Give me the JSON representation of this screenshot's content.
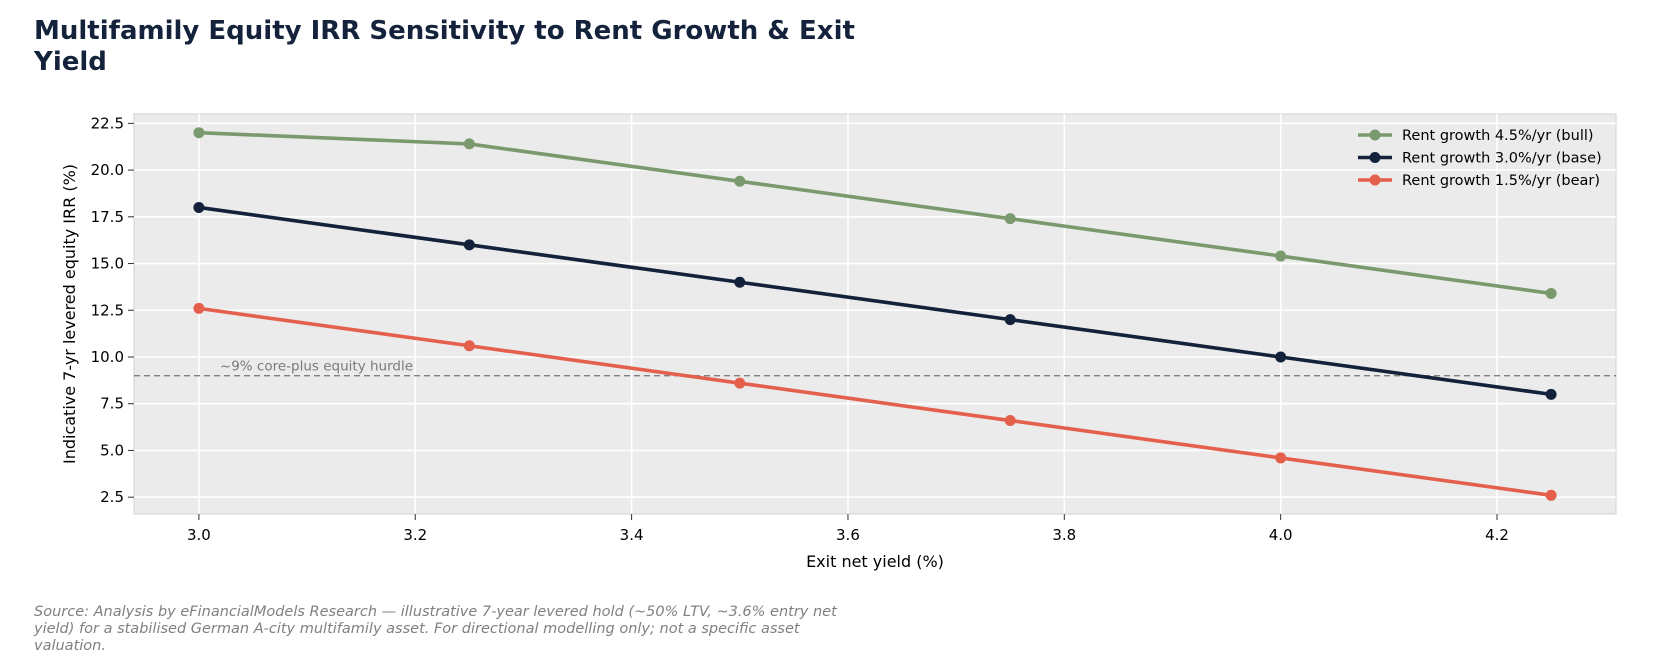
{
  "chart_data": {
    "type": "line",
    "title": "Multifamily Equity IRR Sensitivity to Rent Growth & Exit Yield",
    "xlabel": "Exit net yield (%)",
    "ylabel": "Indicative 7-yr levered equity IRR (%)",
    "x": [
      3.0,
      3.25,
      3.5,
      3.75,
      4.0,
      4.25
    ],
    "xlim": [
      2.94,
      4.31
    ],
    "ylim": [
      1.6,
      23.0
    ],
    "xticks": [
      3.0,
      3.2,
      3.4,
      3.6,
      3.8,
      4.0,
      4.2
    ],
    "xtick_labels": [
      "3.0",
      "3.2",
      "3.4",
      "3.6",
      "3.8",
      "4.0",
      "4.2"
    ],
    "yticks": [
      2.5,
      5.0,
      7.5,
      10.0,
      12.5,
      15.0,
      17.5,
      20.0,
      22.5
    ],
    "ytick_labels": [
      "2.5",
      "5.0",
      "7.5",
      "10.0",
      "12.5",
      "15.0",
      "17.5",
      "20.0",
      "22.5"
    ],
    "grid": true,
    "legend_position": "top-right",
    "series": [
      {
        "name": "Rent growth 4.5%/yr (bull)",
        "color": "#7a9a6e",
        "values": [
          22.0,
          21.4,
          19.4,
          17.4,
          15.4,
          13.4
        ]
      },
      {
        "name": "Rent growth 3.0%/yr (base)",
        "color": "#13213b",
        "values": [
          18.0,
          16.0,
          14.0,
          12.0,
          10.0,
          8.0
        ]
      },
      {
        "name": "Rent growth 1.5%/yr (bear)",
        "color": "#e4604d",
        "values": [
          12.6,
          10.6,
          8.6,
          6.6,
          4.6,
          2.6
        ]
      }
    ],
    "hline": {
      "y": 9.0,
      "label": "~9% core-plus equity hurdle",
      "color": "#808080"
    }
  },
  "source_note": "Source: Analysis by eFinancialModels Research — illustrative 7-year levered hold (~50% LTV, ~3.6% entry net yield) for a stabilised German A-city multifamily asset. For directional modelling only; not a specific asset valuation."
}
